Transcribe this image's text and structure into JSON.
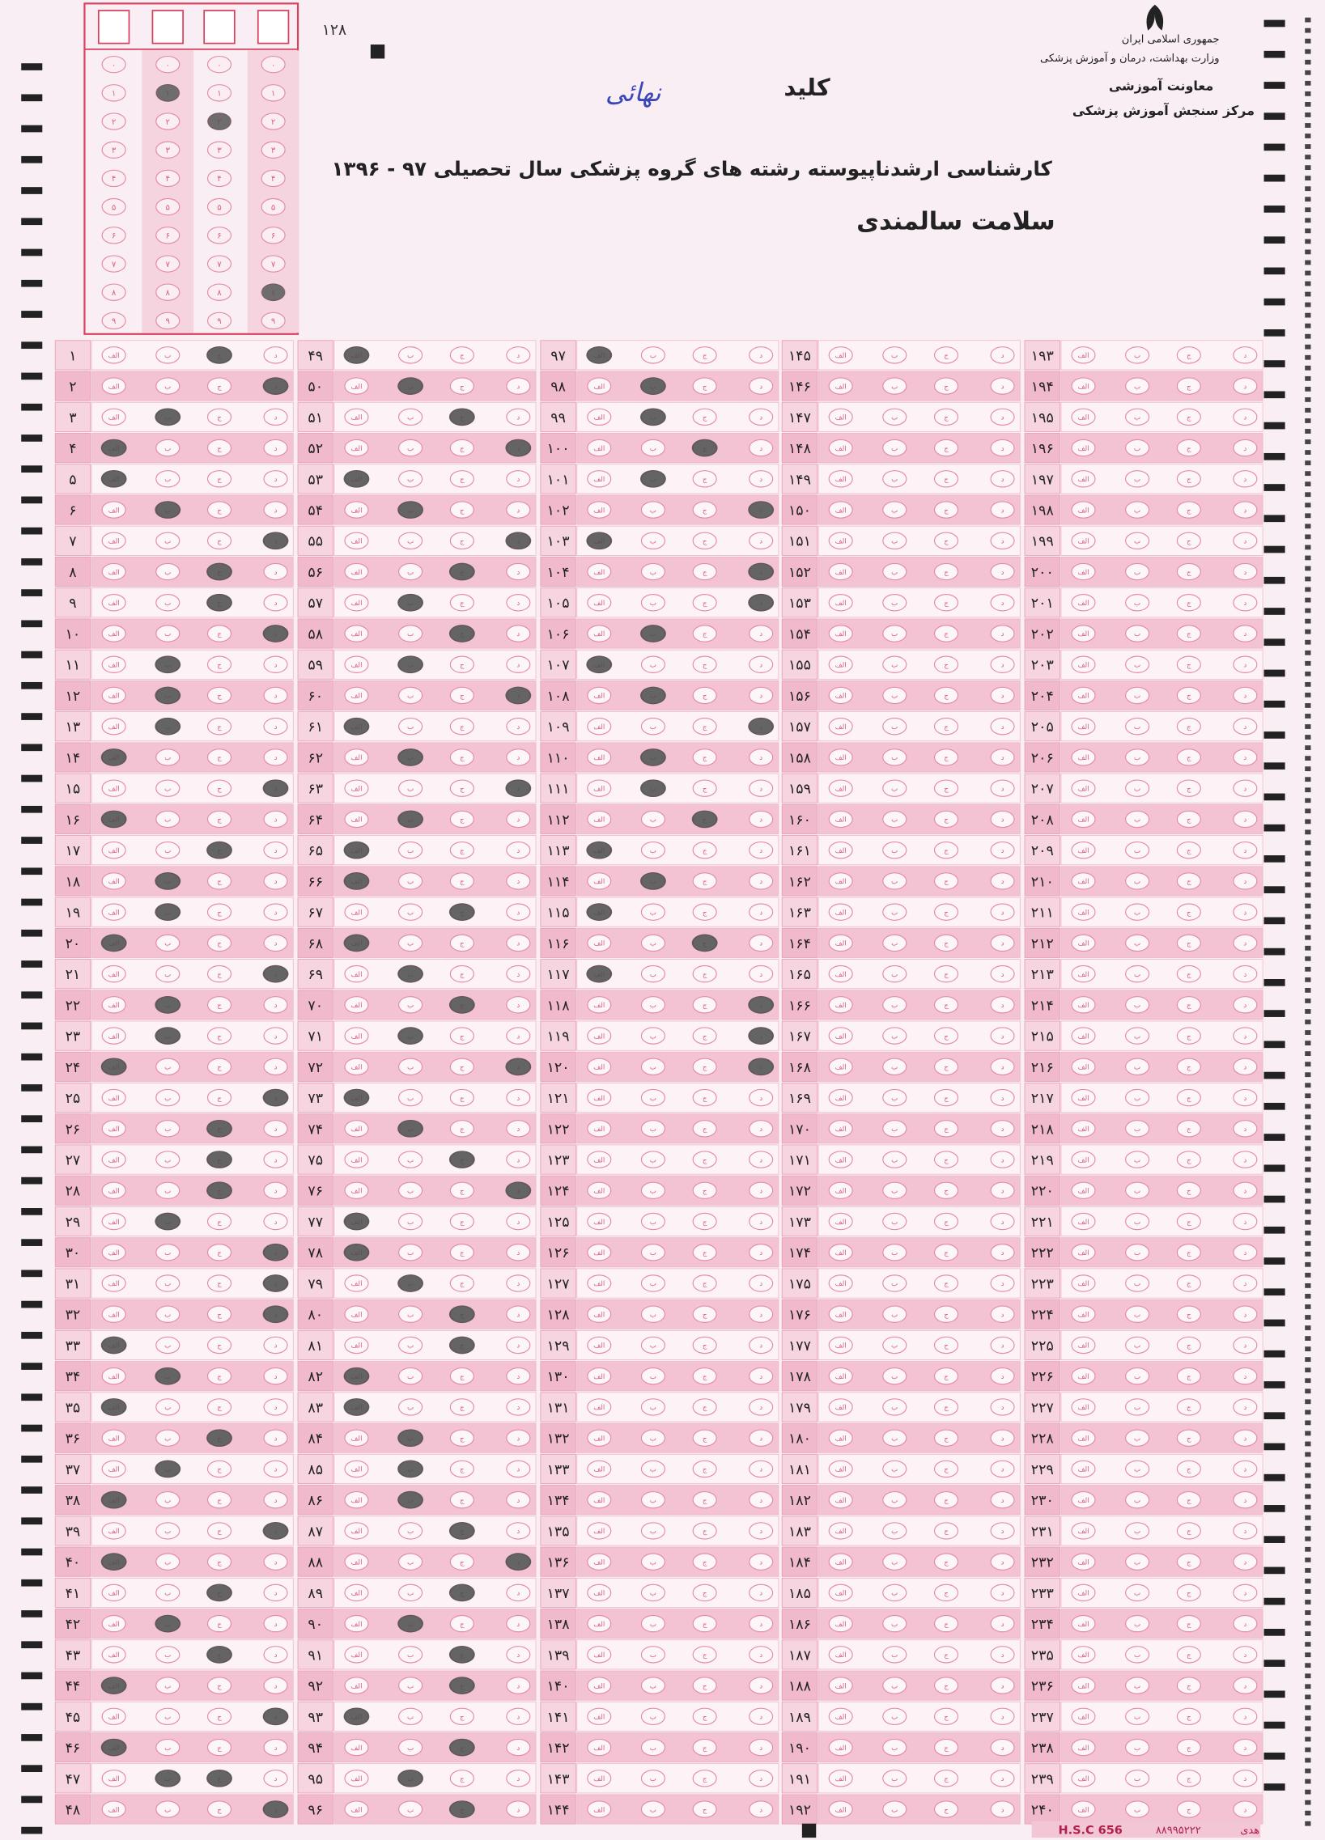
{
  "sheet_number": "۱۲۸",
  "header": {
    "key_label": "کلید",
    "handwritten": "نهائی",
    "org_lines": [
      "جمهوری اسلامی ایران",
      "وزارت بهداشت، درمان و آموزش پزشکی",
      "معاونت آموزشی",
      "مرکز سنجش آموزش پزشکی"
    ],
    "title": "کارشناسی ارشدناپیوسته رشته های گروه پزشکی سال تحصیلی ۹۷ - ۱۳۹۶",
    "subtitle": "سلامت سالمندی"
  },
  "id_box": {
    "digits": [
      "۰",
      "۱",
      "۲",
      "۳",
      "۴",
      "۵",
      "۶",
      "۷",
      "۸",
      "۹"
    ],
    "filled": [
      null,
      1,
      2,
      8
    ]
  },
  "options": [
    "الف",
    "ب",
    "ج",
    "د"
  ],
  "columns": [
    {
      "numbers": [
        "۱",
        "۲",
        "۳",
        "۴",
        "۵",
        "۶",
        "۷",
        "۸",
        "۹",
        "۱۰",
        "۱۱",
        "۱۲",
        "۱۳",
        "۱۴",
        "۱۵",
        "۱۶",
        "۱۷",
        "۱۸",
        "۱۹",
        "۲۰",
        "۲۱",
        "۲۲",
        "۲۳",
        "۲۴",
        "۲۵",
        "۲۶",
        "۲۷",
        "۲۸",
        "۲۹",
        "۳۰",
        "۳۱",
        "۳۲",
        "۳۳",
        "۳۴",
        "۳۵",
        "۳۶",
        "۳۷",
        "۳۸",
        "۳۹",
        "۴۰",
        "۴۱",
        "۴۲",
        "۴۳",
        "۴۴",
        "۴۵",
        "۴۶",
        "۴۷",
        "۴۸"
      ],
      "answers": [
        3,
        4,
        2,
        1,
        1,
        2,
        4,
        3,
        3,
        4,
        2,
        2,
        2,
        1,
        4,
        1,
        3,
        2,
        2,
        1,
        4,
        2,
        2,
        1,
        4,
        3,
        3,
        3,
        2,
        4,
        4,
        4,
        1,
        2,
        1,
        3,
        2,
        1,
        4,
        1,
        3,
        2,
        3,
        1,
        4,
        1,
        [
          2,
          3
        ],
        4
      ]
    },
    {
      "numbers": [
        "۴۹",
        "۵۰",
        "۵۱",
        "۵۲",
        "۵۳",
        "۵۴",
        "۵۵",
        "۵۶",
        "۵۷",
        "۵۸",
        "۵۹",
        "۶۰",
        "۶۱",
        "۶۲",
        "۶۳",
        "۶۴",
        "۶۵",
        "۶۶",
        "۶۷",
        "۶۸",
        "۶۹",
        "۷۰",
        "۷۱",
        "۷۲",
        "۷۳",
        "۷۴",
        "۷۵",
        "۷۶",
        "۷۷",
        "۷۸",
        "۷۹",
        "۸۰",
        "۸۱",
        "۸۲",
        "۸۳",
        "۸۴",
        "۸۵",
        "۸۶",
        "۸۷",
        "۸۸",
        "۸۹",
        "۹۰",
        "۹۱",
        "۹۲",
        "۹۳",
        "۹۴",
        "۹۵",
        "۹۶"
      ],
      "answers": [
        1,
        2,
        3,
        4,
        1,
        2,
        4,
        3,
        2,
        3,
        2,
        4,
        1,
        2,
        4,
        2,
        1,
        1,
        3,
        1,
        2,
        3,
        2,
        4,
        1,
        2,
        3,
        4,
        1,
        1,
        2,
        3,
        3,
        1,
        1,
        2,
        2,
        2,
        3,
        4,
        3,
        2,
        3,
        3,
        1,
        3,
        2,
        3
      ]
    },
    {
      "numbers": [
        "۹۷",
        "۹۸",
        "۹۹",
        "۱۰۰",
        "۱۰۱",
        "۱۰۲",
        "۱۰۳",
        "۱۰۴",
        "۱۰۵",
        "۱۰۶",
        "۱۰۷",
        "۱۰۸",
        "۱۰۹",
        "۱۱۰",
        "۱۱۱",
        "۱۱۲",
        "۱۱۳",
        "۱۱۴",
        "۱۱۵",
        "۱۱۶",
        "۱۱۷",
        "۱۱۸",
        "۱۱۹",
        "۱۲۰",
        "۱۲۱",
        "۱۲۲",
        "۱۲۳",
        "۱۲۴",
        "۱۲۵",
        "۱۲۶",
        "۱۲۷",
        "۱۲۸",
        "۱۲۹",
        "۱۳۰",
        "۱۳۱",
        "۱۳۲",
        "۱۳۳",
        "۱۳۴",
        "۱۳۵",
        "۱۳۶",
        "۱۳۷",
        "۱۳۸",
        "۱۳۹",
        "۱۴۰",
        "۱۴۱",
        "۱۴۲",
        "۱۴۳",
        "۱۴۴"
      ],
      "answers": [
        1,
        2,
        2,
        3,
        2,
        4,
        1,
        4,
        4,
        2,
        1,
        2,
        4,
        2,
        2,
        3,
        1,
        2,
        1,
        3,
        1,
        4,
        4,
        4,
        null,
        null,
        null,
        null,
        null,
        null,
        null,
        null,
        null,
        null,
        null,
        null,
        null,
        null,
        null,
        null,
        null,
        null,
        null,
        null,
        null,
        null,
        null,
        null
      ]
    },
    {
      "numbers": [
        "۱۴۵",
        "۱۴۶",
        "۱۴۷",
        "۱۴۸",
        "۱۴۹",
        "۱۵۰",
        "۱۵۱",
        "۱۵۲",
        "۱۵۳",
        "۱۵۴",
        "۱۵۵",
        "۱۵۶",
        "۱۵۷",
        "۱۵۸",
        "۱۵۹",
        "۱۶۰",
        "۱۶۱",
        "۱۶۲",
        "۱۶۳",
        "۱۶۴",
        "۱۶۵",
        "۱۶۶",
        "۱۶۷",
        "۱۶۸",
        "۱۶۹",
        "۱۷۰",
        "۱۷۱",
        "۱۷۲",
        "۱۷۳",
        "۱۷۴",
        "۱۷۵",
        "۱۷۶",
        "۱۷۷",
        "۱۷۸",
        "۱۷۹",
        "۱۸۰",
        "۱۸۱",
        "۱۸۲",
        "۱۸۳",
        "۱۸۴",
        "۱۸۵",
        "۱۸۶",
        "۱۸۷",
        "۱۸۸",
        "۱۸۹",
        "۱۹۰",
        "۱۹۱",
        "۱۹۲"
      ]
    },
    {
      "numbers": [
        "۱۹۳",
        "۱۹۴",
        "۱۹۵",
        "۱۹۶",
        "۱۹۷",
        "۱۹۸",
        "۱۹۹",
        "۲۰۰",
        "۲۰۱",
        "۲۰۲",
        "۲۰۳",
        "۲۰۴",
        "۲۰۵",
        "۲۰۶",
        "۲۰۷",
        "۲۰۸",
        "۲۰۹",
        "۲۱۰",
        "۲۱۱",
        "۲۱۲",
        "۲۱۳",
        "۲۱۴",
        "۲۱۵",
        "۲۱۶",
        "۲۱۷",
        "۲۱۸",
        "۲۱۹",
        "۲۲۰",
        "۲۲۱",
        "۲۲۲",
        "۲۲۳",
        "۲۲۴",
        "۲۲۵",
        "۲۲۶",
        "۲۲۷",
        "۲۲۸",
        "۲۲۹",
        "۲۳۰",
        "۲۳۱",
        "۲۳۲",
        "۲۳۳",
        "۲۳۴",
        "۲۳۵",
        "۲۳۶",
        "۲۳۷",
        "۲۳۸",
        "۲۳۹",
        "۲۴۰"
      ]
    }
  ],
  "footer": {
    "code": "H.S.C 656",
    "phone": "۸۸۹۹۵۲۲۲",
    "brand": "هدی"
  }
}
